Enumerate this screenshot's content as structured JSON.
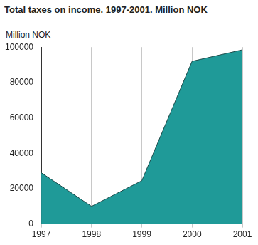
{
  "chart_data": {
    "type": "area",
    "title": "Total taxes on income. 1997-2001. Million NOK",
    "ylabel": "Million NOK",
    "categories": [
      "1997",
      "1998",
      "1999",
      "2000",
      "2001"
    ],
    "values": [
      29000,
      10000,
      24500,
      92000,
      98500
    ],
    "color": "#1f9a98",
    "ylim": [
      0,
      100000
    ],
    "yticks": [
      0,
      20000,
      40000,
      60000,
      80000,
      100000
    ],
    "grid": true
  }
}
